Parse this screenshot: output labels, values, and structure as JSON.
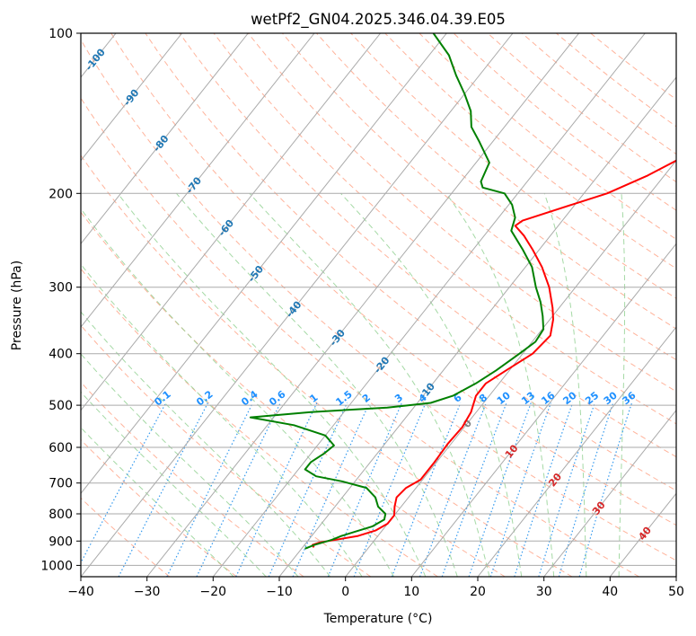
{
  "chart_data": {
    "type": "skew-t",
    "title": "wetPf2_GN04.2025.346.04.39.E05",
    "xlabel": "Temperature (°C)",
    "ylabel": "Pressure (hPa)",
    "xlim": [
      -40,
      50
    ],
    "ylim": [
      1050,
      100
    ],
    "x_ticks": [
      -40,
      -30,
      -20,
      -10,
      0,
      10,
      20,
      30,
      40,
      50
    ],
    "x_tick_labels": [
      "−40",
      "−30",
      "−20",
      "−10",
      "0",
      "10",
      "20",
      "30",
      "40",
      "50"
    ],
    "y_ticks": [
      100,
      200,
      300,
      400,
      500,
      600,
      700,
      800,
      900,
      1000
    ],
    "y_tick_labels": [
      "100",
      "200",
      "300",
      "400",
      "500",
      "600",
      "700",
      "800",
      "900",
      "1000"
    ],
    "grid": true,
    "colors": {
      "temperature": "#ff0000",
      "dewpoint": "#008000",
      "isotherm": "#aaaaaa",
      "dry_adiabat": "#ff9a7a",
      "moist_adiabat": "#8fcf8f",
      "mixing_ratio": "#3399ee",
      "isotherm_label": "#1f77b4",
      "mixing_ratio_label": "#1e90ff",
      "zero_isotherm_label": "#808080",
      "warm_isotherm_label": "#d62728"
    },
    "isotherm_labels": [
      {
        "t": -100,
        "p": 112,
        "text": "-100"
      },
      {
        "t": -90,
        "p": 132,
        "text": "-90"
      },
      {
        "t": -80,
        "p": 161,
        "text": "-80"
      },
      {
        "t": -70,
        "p": 193,
        "text": "-70"
      },
      {
        "t": -60,
        "p": 232,
        "text": "-60"
      },
      {
        "t": -50,
        "p": 283,
        "text": "-50"
      },
      {
        "t": -40,
        "p": 330,
        "text": "-40"
      },
      {
        "t": -30,
        "p": 373,
        "text": "-30"
      },
      {
        "t": -20,
        "p": 420,
        "text": "-20"
      },
      {
        "t": -10,
        "p": 470,
        "text": "-10"
      },
      {
        "t": 0,
        "p": 541,
        "text": "0"
      },
      {
        "t": 10,
        "p": 610,
        "text": "10"
      },
      {
        "t": 20,
        "p": 690,
        "text": "20"
      },
      {
        "t": 30,
        "p": 780,
        "text": "30"
      },
      {
        "t": 40,
        "p": 870,
        "text": "40"
      }
    ],
    "mixing_ratio_labels": [
      "0.1",
      "0.2",
      "0.4",
      "0.6",
      "1",
      "1.5",
      "2",
      "3",
      "4",
      "6",
      "8",
      "10",
      "13",
      "16",
      "20",
      "25",
      "30",
      "36"
    ],
    "temperature_profile": [
      {
        "p": 925,
        "t": -8.3
      },
      {
        "p": 915,
        "t": -8.8
      },
      {
        "p": 905,
        "t": -8.0
      },
      {
        "p": 893,
        "t": -5.5
      },
      {
        "p": 880,
        "t": -3.0
      },
      {
        "p": 860,
        "t": -1.0
      },
      {
        "p": 835,
        "t": 0.0
      },
      {
        "p": 805,
        "t": 0.0
      },
      {
        "p": 775,
        "t": -1.0
      },
      {
        "p": 745,
        "t": -1.8
      },
      {
        "p": 715,
        "t": -1.5
      },
      {
        "p": 690,
        "t": -0.3
      },
      {
        "p": 640,
        "t": -0.3
      },
      {
        "p": 590,
        "t": -0.5
      },
      {
        "p": 550,
        "t": -0.3
      },
      {
        "p": 515,
        "t": -0.8
      },
      {
        "p": 480,
        "t": -2.0
      },
      {
        "p": 455,
        "t": -2.0
      },
      {
        "p": 430,
        "t": -0.5
      },
      {
        "p": 400,
        "t": 1.5
      },
      {
        "p": 370,
        "t": 2.0
      },
      {
        "p": 345,
        "t": 0.5
      },
      {
        "p": 328,
        "t": -1.0
      },
      {
        "p": 300,
        "t": -4.0
      },
      {
        "p": 275,
        "t": -7.5
      },
      {
        "p": 255,
        "t": -11.0
      },
      {
        "p": 240,
        "t": -14.0
      },
      {
        "p": 230,
        "t": -16.5
      },
      {
        "p": 225,
        "t": -16.0
      },
      {
        "p": 210,
        "t": -10.5
      },
      {
        "p": 200,
        "t": -6.5
      },
      {
        "p": 185,
        "t": -2.5
      },
      {
        "p": 165,
        "t": 2.0
      },
      {
        "p": 145,
        "t": 6.0
      },
      {
        "p": 130,
        "t": 9.5
      },
      {
        "p": 118,
        "t": 11.5
      },
      {
        "p": 108,
        "t": 15.0
      },
      {
        "p": 100,
        "t": 19.5
      }
    ],
    "dewpoint_profile": [
      {
        "p": 930,
        "t": -9.5
      },
      {
        "p": 915,
        "t": -8.5
      },
      {
        "p": 895,
        "t": -6.5
      },
      {
        "p": 880,
        "t": -5.5
      },
      {
        "p": 865,
        "t": -4.0
      },
      {
        "p": 845,
        "t": -2.0
      },
      {
        "p": 820,
        "t": -1.0
      },
      {
        "p": 800,
        "t": -1.5
      },
      {
        "p": 775,
        "t": -3.5
      },
      {
        "p": 745,
        "t": -5.0
      },
      {
        "p": 715,
        "t": -7.5
      },
      {
        "p": 695,
        "t": -12.0
      },
      {
        "p": 680,
        "t": -16.5
      },
      {
        "p": 660,
        "t": -19.0
      },
      {
        "p": 640,
        "t": -19.0
      },
      {
        "p": 615,
        "t": -18.0
      },
      {
        "p": 595,
        "t": -17.5
      },
      {
        "p": 570,
        "t": -20.0
      },
      {
        "p": 545,
        "t": -26.0
      },
      {
        "p": 527,
        "t": -33.5
      },
      {
        "p": 515,
        "t": -25.0
      },
      {
        "p": 505,
        "t": -14.0
      },
      {
        "p": 495,
        "t": -8.0
      },
      {
        "p": 480,
        "t": -5.5
      },
      {
        "p": 455,
        "t": -3.5
      },
      {
        "p": 430,
        "t": -2.0
      },
      {
        "p": 400,
        "t": -0.5
      },
      {
        "p": 380,
        "t": 0.5
      },
      {
        "p": 360,
        "t": 0.2
      },
      {
        "p": 340,
        "t": -1.5
      },
      {
        "p": 320,
        "t": -3.5
      },
      {
        "p": 300,
        "t": -6.0
      },
      {
        "p": 275,
        "t": -9.0
      },
      {
        "p": 255,
        "t": -12.5
      },
      {
        "p": 235,
        "t": -16.5
      },
      {
        "p": 222,
        "t": -17.5
      },
      {
        "p": 210,
        "t": -19.5
      },
      {
        "p": 200,
        "t": -22.0
      },
      {
        "p": 195,
        "t": -26.0
      },
      {
        "p": 190,
        "t": -27.0
      },
      {
        "p": 175,
        "t": -28.0
      },
      {
        "p": 160,
        "t": -32.0
      },
      {
        "p": 150,
        "t": -35.0
      },
      {
        "p": 140,
        "t": -37.0
      },
      {
        "p": 130,
        "t": -40.0
      },
      {
        "p": 120,
        "t": -43.5
      },
      {
        "p": 110,
        "t": -47.0
      },
      {
        "p": 100,
        "t": -52.0
      }
    ]
  }
}
